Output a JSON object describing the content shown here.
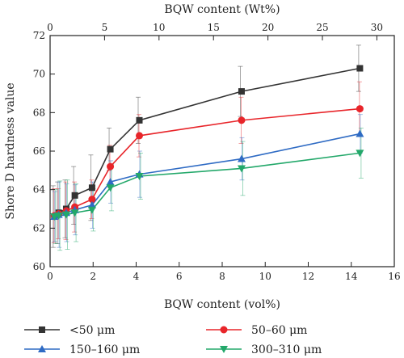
{
  "chart_data": {
    "type": "line",
    "xlabel": "BQW content (vol%)",
    "ylabel": "Shore D hardness value",
    "top_xlabel": "BQW content (Wt%)",
    "xlim": [
      0,
      16
    ],
    "ylim": [
      60,
      72
    ],
    "top_xlim": [
      0,
      31.6
    ],
    "x_ticks": [
      0,
      2,
      4,
      6,
      8,
      10,
      12,
      14,
      16
    ],
    "y_ticks": [
      60,
      62,
      64,
      66,
      68,
      70,
      72
    ],
    "top_x_ticks": [
      0,
      5,
      10,
      15,
      20,
      25,
      30
    ],
    "grid": false,
    "legend": "below",
    "x": [
      0.2,
      0.4,
      0.75,
      1.15,
      1.95,
      2.8,
      4.15,
      8.9,
      14.4
    ],
    "series": [
      {
        "name": "<50 μm",
        "marker": "square",
        "color": "#333333",
        "values": [
          62.6,
          62.8,
          63.0,
          63.7,
          64.1,
          66.1,
          67.6,
          69.1,
          70.3
        ],
        "errors": [
          1.6,
          1.6,
          1.5,
          1.5,
          1.7,
          1.1,
          1.2,
          1.3,
          1.2
        ]
      },
      {
        "name": "50–60 μm",
        "marker": "circle",
        "color": "#e8252a",
        "values": [
          62.65,
          62.75,
          62.9,
          63.1,
          63.5,
          65.2,
          66.8,
          67.6,
          68.2
        ],
        "errors": [
          1.4,
          1.3,
          1.5,
          1.3,
          1.0,
          1.1,
          1.1,
          1.2,
          1.4
        ]
      },
      {
        "name": "150–160 μm",
        "marker": "triangle-up",
        "color": "#2f6bc4",
        "values": [
          62.6,
          62.7,
          62.8,
          62.95,
          63.2,
          64.4,
          64.8,
          65.6,
          66.9
        ],
        "errors": [
          1.3,
          1.7,
          1.5,
          1.3,
          1.2,
          1.1,
          1.2,
          1.1,
          1.0
        ]
      },
      {
        "name": "300–310 μm",
        "marker": "triangle-down",
        "color": "#23a86a",
        "values": [
          62.6,
          62.65,
          62.7,
          62.8,
          62.95,
          64.1,
          64.7,
          65.1,
          65.9
        ],
        "errors": [
          1.4,
          1.8,
          1.8,
          1.5,
          1.1,
          1.2,
          1.2,
          1.4,
          1.3
        ]
      }
    ]
  }
}
